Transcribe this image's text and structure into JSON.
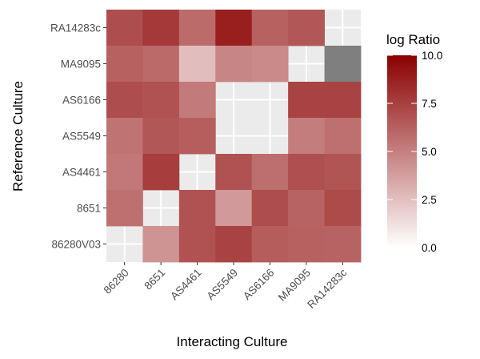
{
  "chart_data": {
    "type": "heatmap",
    "xlabel": "Interacting Culture",
    "ylabel": "Reference Culture",
    "x_categories": [
      "86280",
      "8651",
      "AS4461",
      "AS5549",
      "AS6166",
      "MA9095",
      "RA14283c"
    ],
    "y_categories": [
      "RA14283c",
      "MA9095",
      "AS6166",
      "AS5549",
      "AS4461",
      "8651",
      "86280V03"
    ],
    "values": [
      [
        7.0,
        7.8,
        5.8,
        8.8,
        6.2,
        6.6,
        null
      ],
      [
        6.2,
        5.9,
        2.6,
        4.8,
        4.6,
        null,
        10.5
      ],
      [
        7.0,
        6.8,
        5.2,
        null,
        null,
        7.4,
        7.4
      ],
      [
        5.5,
        6.6,
        6.3,
        null,
        null,
        5.1,
        5.6
      ],
      [
        5.3,
        7.6,
        null,
        6.8,
        5.7,
        6.9,
        6.7
      ],
      [
        5.6,
        null,
        6.8,
        4.0,
        7.0,
        6.1,
        7.1
      ],
      [
        null,
        4.2,
        6.8,
        7.4,
        6.4,
        6.2,
        6.1
      ]
    ],
    "legend": {
      "title": "log Ratio",
      "min": 0,
      "max": 10,
      "ticks": [
        "0.0",
        "2.5",
        "5.0",
        "7.5",
        "10.0"
      ],
      "low_color": "#ffffff",
      "high_color": "#8b0000",
      "out_of_range_color": "#7f7f7f"
    },
    "panel_background": "#ebebeb",
    "grid": true
  }
}
